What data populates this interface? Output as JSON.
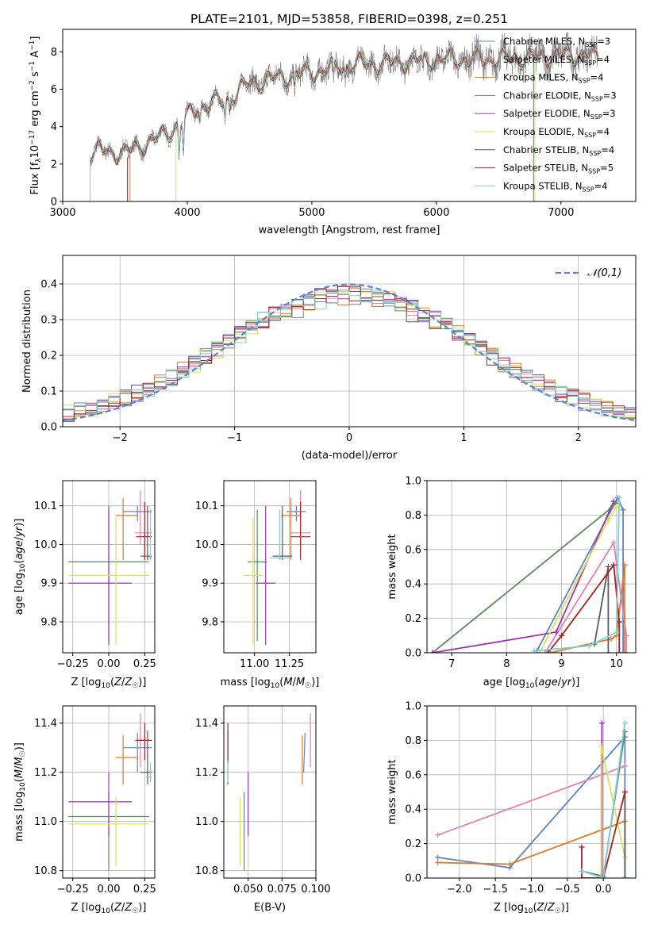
{
  "figure_title": "PLATE=2101, MJD=53858, FIBERID=0398, z=0.251",
  "series_colors": {
    "Chabrier MILES": "#5b84c8",
    "Salpeter MILES": "#e280b8",
    "Kroupa MILES": "#dd7a2a",
    "Chabrier ELODIE": "#5b8a5b",
    "Salpeter ELODIE": "#9b36b0",
    "Kroupa ELODIE": "#d7e35a",
    "Chabrier STELIB": "#5a5a5a",
    "Salpeter STELIB": "#b01d1d",
    "Kroupa STELIB": "#7fcfd8"
  },
  "chart_data": [
    {
      "id": "spectrum",
      "type": "line",
      "title": "PLATE=2101, MJD=53858, FIBERID=0398, z=0.251",
      "xlabel": "wavelength [Angstrom, rest frame]",
      "ylabel_parts": [
        "Flux [f",
        "λ",
        "10",
        "−17",
        " erg cm",
        "−2",
        " s",
        "−1",
        " A",
        "−1",
        "]"
      ],
      "xlim": [
        3000,
        7600
      ],
      "ylim": [
        0,
        9.2
      ],
      "xticks": [
        3000,
        4000,
        5000,
        6000,
        7000
      ],
      "yticks": [
        0,
        2,
        4,
        6,
        8
      ],
      "grid": false,
      "legend_position": "top-right",
      "data_color": "#808080",
      "continuum": {
        "x": [
          3220,
          3300,
          3500,
          3600,
          3800,
          3950,
          4100,
          4300,
          4500,
          4800,
          5000,
          5300,
          5600,
          6000,
          6400,
          6800,
          7200,
          7300
        ],
        "y": [
          2.5,
          2.7,
          2.6,
          2.9,
          3.5,
          4.2,
          5.1,
          5.4,
          6.3,
          6.7,
          6.9,
          7.3,
          7.4,
          7.6,
          7.6,
          7.7,
          7.9,
          7.7
        ]
      },
      "legend": [
        {
          "label": "Chabrier MILES, N",
          "sub": "SSP",
          "value": "=3"
        },
        {
          "label": "Salpeter MILES, N",
          "sub": "SSP",
          "value": "=4"
        },
        {
          "label": "Kroupa MILES, N",
          "sub": "SSP",
          "value": "=4"
        },
        {
          "label": "Chabrier ELODIE, N",
          "sub": "SSP",
          "value": "=3"
        },
        {
          "label": "Salpeter ELODIE, N",
          "sub": "SSP",
          "value": "=3"
        },
        {
          "label": "Kroupa ELODIE, N",
          "sub": "SSP",
          "value": "=4"
        },
        {
          "label": "Chabrier STELIB, N",
          "sub": "SSP",
          "value": "=4"
        },
        {
          "label": "Salpeter STELIB, N",
          "sub": "SSP",
          "value": "=5"
        },
        {
          "label": "Kroupa STELIB, N",
          "sub": "SSP",
          "value": "=4"
        }
      ]
    },
    {
      "id": "residuals",
      "type": "histogram",
      "xlabel": "(data-model)/error",
      "ylabel": "Normed distribution",
      "xlim": [
        -2.5,
        2.5
      ],
      "ylim": [
        0,
        0.48
      ],
      "xticks": [
        -2,
        -1,
        0,
        1,
        2
      ],
      "yticks": [
        0.0,
        0.1,
        0.2,
        0.3,
        0.4
      ],
      "grid": true,
      "legend_position": "top-right",
      "reference_curve": {
        "label": "𝒩(0,1)",
        "color": "#5b84c8",
        "style": "dashed",
        "mean": 0,
        "sigma": 1
      },
      "bin_width": 0.1
    },
    {
      "id": "age-vs-Z",
      "type": "scatter",
      "xlabel": "Z [log10(Z/Z☉)]",
      "ylabel": "age [log10(age/yr)]",
      "xlim": [
        -0.32,
        0.32
      ],
      "ylim": [
        9.72,
        10.165
      ],
      "xticks": [
        -0.25,
        0.0,
        0.25
      ],
      "yticks": [
        9.8,
        9.9,
        10.0,
        10.1
      ],
      "grid": true
    },
    {
      "id": "age-vs-mass",
      "type": "scatter",
      "xlabel": "mass [log10(M/M☉)]",
      "ylabel": "",
      "xlim": [
        10.78,
        11.44
      ],
      "ylim": [
        9.72,
        10.165
      ],
      "xticks": [
        11.0,
        11.25
      ],
      "yticks": [
        9.8,
        9.9,
        10.0,
        10.1
      ],
      "grid": true
    },
    {
      "id": "mass-weight-vs-age",
      "type": "line",
      "xlabel": "age [log10(age/yr)]",
      "ylabel": "mass weight",
      "xlim": [
        6.55,
        10.35
      ],
      "ylim": [
        0,
        1
      ],
      "xticks": [
        7,
        8,
        9,
        10
      ],
      "yticks": [
        0.0,
        0.2,
        0.4,
        0.6,
        0.8,
        1.0
      ],
      "grid": true
    },
    {
      "id": "mass-vs-Z",
      "type": "scatter",
      "xlabel": "Z [log10(Z/Z☉)]",
      "ylabel": "mass [log10(M/M☉)]",
      "xlim": [
        -0.32,
        0.32
      ],
      "ylim": [
        10.77,
        11.47
      ],
      "xticks": [
        -0.25,
        0.0,
        0.25
      ],
      "yticks": [
        10.8,
        11.0,
        11.2,
        11.4
      ],
      "grid": true
    },
    {
      "id": "mass-vs-EBV",
      "type": "scatter",
      "xlabel": "E(B-V)",
      "ylabel": "",
      "xlim": [
        0.032,
        0.1
      ],
      "ylim": [
        10.77,
        11.47
      ],
      "xticks": [
        0.05,
        0.075,
        0.1
      ],
      "yticks": [
        10.8,
        11.0,
        11.2,
        11.4
      ],
      "grid": true
    },
    {
      "id": "mass-weight-vs-Z",
      "type": "line",
      "xlabel": "Z [log10(Z/Z☉)]",
      "ylabel": "mass weight",
      "xlim": [
        -2.45,
        0.45
      ],
      "ylim": [
        0,
        1
      ],
      "xticks": [
        -2.0,
        -1.5,
        -1.0,
        -0.5,
        0.0
      ],
      "yticks": [
        0.0,
        0.2,
        0.4,
        0.6,
        0.8,
        1.0
      ],
      "grid": true
    }
  ],
  "models": [
    {
      "name": "Chabrier MILES",
      "Z": [
        0.2,
        0.1,
        0.3
      ],
      "age": [
        10.085,
        10.06,
        10.1
      ],
      "mass": [
        11.3,
        11.2,
        11.36
      ],
      "ebv": [
        0.091,
        0.092
      ],
      "mw_age": [
        [
          8.55,
          0.01
        ],
        [
          10.02,
          0.9
        ],
        [
          10.12,
          0.83
        ],
        [
          10.12,
          0.0
        ]
      ],
      "mw_Z": [
        [
          -2.3,
          0.12
        ],
        [
          -1.3,
          0.06
        ],
        [
          0.3,
          0.82
        ],
        [
          0.3,
          0.0
        ]
      ]
    },
    {
      "name": "Salpeter MILES",
      "Z": [
        0.22,
        0.18,
        0.3
      ],
      "age": [
        10.03,
        10.0,
        10.14
      ],
      "mass": [
        11.33,
        11.22,
        11.44
      ],
      "ebv": [
        0.096,
        0.096
      ],
      "mw_age": [
        [
          8.7,
          0.0
        ],
        [
          9.95,
          0.64
        ],
        [
          10.18,
          0.1
        ],
        [
          10.18,
          0.0
        ]
      ],
      "mw_Z": [
        [
          -2.3,
          0.25
        ],
        [
          0.3,
          0.65
        ]
      ]
    },
    {
      "name": "Kroupa MILES",
      "Z": [
        0.1,
        0.05,
        0.2
      ],
      "age": [
        10.075,
        9.96,
        10.12
      ],
      "mass": [
        11.26,
        11.15,
        11.35
      ],
      "ebv": [
        0.09,
        0.09
      ],
      "mw_age": [
        [
          8.8,
          0.0
        ],
        [
          9.9,
          0.08
        ],
        [
          10.0,
          0.1
        ],
        [
          10.15,
          0.51
        ],
        [
          10.15,
          0.0
        ]
      ],
      "mw_Z": [
        [
          -2.3,
          0.09
        ],
        [
          -1.3,
          0.08
        ],
        [
          0.3,
          0.33
        ]
      ]
    },
    {
      "name": "Chabrier ELODIE",
      "Z": [
        0.0,
        -0.28,
        0.28
      ],
      "age": [
        9.955,
        9.75,
        10.09
      ],
      "mass": [
        11.02,
        10.8,
        11.12
      ],
      "ebv": [
        0.047,
        0.047
      ],
      "mw_age": [
        [
          6.65,
          0.0
        ],
        [
          9.9,
          0.84
        ],
        [
          10.0,
          0.87
        ]
      ],
      "mw_Z": [
        [
          -0.3,
          0.04
        ],
        [
          0.0,
          0.01
        ],
        [
          0.3,
          0.85
        ]
      ]
    },
    {
      "name": "Salpeter ELODIE",
      "Z": [
        0.0,
        -0.28,
        0.16
      ],
      "age": [
        9.9,
        9.74,
        10.1
      ],
      "mass": [
        11.08,
        10.94,
        11.2
      ],
      "ebv": [
        0.05,
        0.05
      ],
      "mw_age": [
        [
          6.65,
          0.0
        ],
        [
          8.9,
          0.12
        ],
        [
          9.95,
          0.88
        ]
      ],
      "mw_Z": [
        [
          -0.02,
          0.0
        ],
        [
          -0.02,
          0.9
        ]
      ]
    },
    {
      "name": "Kroupa ELODIE",
      "Z": [
        0.05,
        -0.28,
        0.28
      ],
      "age": [
        9.92,
        9.74,
        10.07
      ],
      "mass": [
        10.99,
        10.82,
        11.1
      ],
      "ebv": [
        0.044,
        0.044
      ],
      "mw_age": [
        [
          8.6,
          0.0
        ],
        [
          9.85,
          0.77
        ],
        [
          10.0,
          0.85
        ]
      ],
      "mw_Z": [
        [
          -0.03,
          0.0
        ],
        [
          -0.03,
          0.77
        ],
        [
          0.3,
          0.12
        ]
      ]
    },
    {
      "name": "Chabrier STELIB",
      "Z": [
        0.27,
        0.22,
        0.3
      ],
      "age": [
        9.97,
        9.96,
        10.1
      ],
      "mass": [
        11.2,
        11.15,
        11.37
      ],
      "ebv": [
        0.035,
        0.035
      ],
      "mw_age": [
        [
          9.6,
          0.05
        ],
        [
          9.85,
          0.5
        ],
        [
          9.85,
          0.0
        ]
      ],
      "mw_Z": [
        [
          0.3,
          0.0
        ],
        [
          0.3,
          0.5
        ]
      ]
    },
    {
      "name": "Salpeter STELIB",
      "Z": [
        0.25,
        0.19,
        0.3
      ],
      "age": [
        10.02,
        9.96,
        10.11
      ],
      "mass": [
        11.33,
        11.25,
        11.4
      ],
      "ebv": [
        0.035,
        0.035
      ],
      "mw_age": [
        [
          8.75,
          0.0
        ],
        [
          9.0,
          0.1
        ],
        [
          9.95,
          0.51
        ],
        [
          10.05,
          0.18
        ],
        [
          10.05,
          0.0
        ]
      ],
      "mw_Z": [
        [
          -0.3,
          0.18
        ],
        [
          -0.3,
          0.0
        ],
        [
          0.0,
          0.0
        ],
        [
          0.3,
          0.5
        ]
      ]
    },
    {
      "name": "Kroupa STELIB",
      "Z": [
        0.29,
        0.26,
        0.3
      ],
      "age": [
        9.965,
        9.96,
        10.09
      ],
      "mass": [
        11.18,
        11.16,
        11.24
      ],
      "ebv": [
        0.035,
        0.035
      ],
      "mw_age": [
        [
          8.5,
          0.01
        ],
        [
          9.5,
          0.04
        ],
        [
          10.0,
          0.12
        ],
        [
          10.05,
          0.9
        ]
      ],
      "mw_Z": [
        [
          -0.3,
          0.04
        ],
        [
          0.0,
          0.0
        ],
        [
          0.3,
          0.9
        ]
      ]
    }
  ]
}
